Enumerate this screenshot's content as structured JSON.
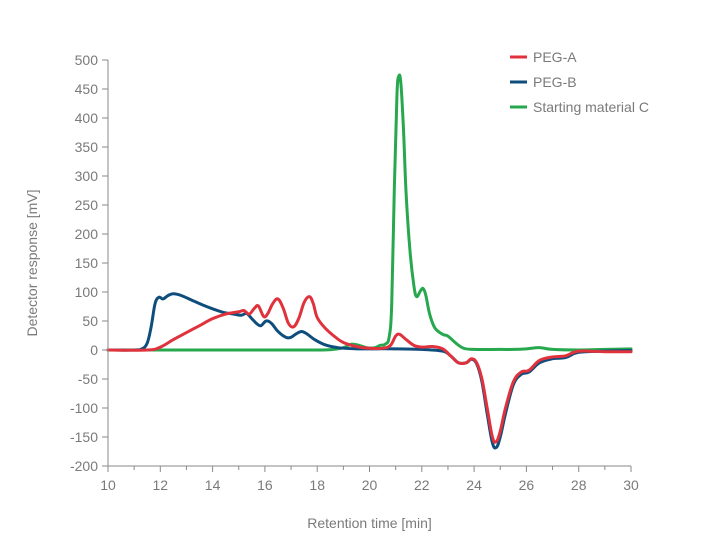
{
  "chart_data": {
    "type": "line",
    "title": "",
    "xlabel": "Retention time [min]",
    "ylabel": "Detector response [mV]",
    "xlim": [
      10,
      30
    ],
    "ylim": [
      -200,
      500
    ],
    "x_ticks": [
      "10",
      "12",
      "14",
      "16",
      "18",
      "20",
      "22",
      "24",
      "26",
      "28",
      "30"
    ],
    "y_ticks": [
      "500",
      "450",
      "400",
      "350",
      "300",
      "250",
      "200",
      "150",
      "100",
      "50",
      "0",
      "-50",
      "-100",
      "-150",
      "-200"
    ],
    "grid": false,
    "legend_position": "top-right",
    "series": [
      {
        "name": "PEG-A",
        "color": "#e0323c",
        "points": [
          [
            10,
            0
          ],
          [
            11.5,
            0
          ],
          [
            12,
            5
          ],
          [
            12.5,
            18
          ],
          [
            13,
            30
          ],
          [
            13.5,
            42
          ],
          [
            14,
            54
          ],
          [
            14.5,
            62
          ],
          [
            15,
            66
          ],
          [
            15.2,
            68
          ],
          [
            15.4,
            62
          ],
          [
            15.6,
            72
          ],
          [
            15.75,
            76
          ],
          [
            15.95,
            58
          ],
          [
            16.1,
            62
          ],
          [
            16.3,
            80
          ],
          [
            16.5,
            88
          ],
          [
            16.7,
            72
          ],
          [
            16.9,
            46
          ],
          [
            17.1,
            40
          ],
          [
            17.3,
            55
          ],
          [
            17.5,
            82
          ],
          [
            17.7,
            92
          ],
          [
            17.85,
            80
          ],
          [
            18,
            56
          ],
          [
            18.3,
            38
          ],
          [
            18.7,
            22
          ],
          [
            19,
            13
          ],
          [
            19.5,
            6
          ],
          [
            20,
            3
          ],
          [
            20.5,
            3
          ],
          [
            20.8,
            8
          ],
          [
            21,
            24
          ],
          [
            21.15,
            27
          ],
          [
            21.4,
            18
          ],
          [
            21.7,
            8
          ],
          [
            22,
            5
          ],
          [
            22.4,
            6
          ],
          [
            22.8,
            2
          ],
          [
            23.1,
            -10
          ],
          [
            23.4,
            -22
          ],
          [
            23.7,
            -22
          ],
          [
            23.9,
            -15
          ],
          [
            24.1,
            -22
          ],
          [
            24.3,
            -50
          ],
          [
            24.5,
            -100
          ],
          [
            24.7,
            -150
          ],
          [
            24.85,
            -158
          ],
          [
            25,
            -140
          ],
          [
            25.2,
            -100
          ],
          [
            25.5,
            -55
          ],
          [
            25.8,
            -38
          ],
          [
            26.1,
            -35
          ],
          [
            26.5,
            -18
          ],
          [
            27,
            -12
          ],
          [
            27.5,
            -10
          ],
          [
            28,
            -2
          ],
          [
            29,
            -3
          ],
          [
            30,
            -3
          ]
        ]
      },
      {
        "name": "PEG-B",
        "color": "#0e4d7c",
        "points": [
          [
            10,
            0
          ],
          [
            11,
            0
          ],
          [
            11.3,
            2
          ],
          [
            11.5,
            12
          ],
          [
            11.65,
            40
          ],
          [
            11.8,
            80
          ],
          [
            11.95,
            91
          ],
          [
            12.1,
            88
          ],
          [
            12.3,
            94
          ],
          [
            12.5,
            97
          ],
          [
            12.8,
            94
          ],
          [
            13.2,
            86
          ],
          [
            13.6,
            78
          ],
          [
            14,
            71
          ],
          [
            14.4,
            65
          ],
          [
            14.8,
            62
          ],
          [
            15.1,
            60
          ],
          [
            15.3,
            63
          ],
          [
            15.5,
            54
          ],
          [
            15.7,
            45
          ],
          [
            15.85,
            42
          ],
          [
            16.05,
            50
          ],
          [
            16.25,
            46
          ],
          [
            16.5,
            32
          ],
          [
            16.8,
            22
          ],
          [
            17,
            22
          ],
          [
            17.2,
            28
          ],
          [
            17.4,
            32
          ],
          [
            17.6,
            28
          ],
          [
            17.9,
            18
          ],
          [
            18.3,
            9
          ],
          [
            18.8,
            4
          ],
          [
            19.5,
            2
          ],
          [
            20,
            2
          ],
          [
            21,
            2
          ],
          [
            22,
            1
          ],
          [
            22.8,
            -2
          ],
          [
            23.1,
            -10
          ],
          [
            23.4,
            -22
          ],
          [
            23.7,
            -22
          ],
          [
            23.9,
            -16
          ],
          [
            24.1,
            -24
          ],
          [
            24.3,
            -55
          ],
          [
            24.5,
            -110
          ],
          [
            24.7,
            -160
          ],
          [
            24.85,
            -168
          ],
          [
            25,
            -150
          ],
          [
            25.2,
            -110
          ],
          [
            25.5,
            -60
          ],
          [
            25.8,
            -42
          ],
          [
            26.1,
            -38
          ],
          [
            26.5,
            -22
          ],
          [
            27,
            -15
          ],
          [
            27.5,
            -13
          ],
          [
            28,
            -4
          ],
          [
            29,
            -2
          ],
          [
            30,
            -1
          ]
        ]
      },
      {
        "name": "Starting material C",
        "color": "#27a84e",
        "points": [
          [
            10,
            0
          ],
          [
            12,
            0
          ],
          [
            14,
            0
          ],
          [
            16,
            0
          ],
          [
            18,
            0
          ],
          [
            18.6,
            1
          ],
          [
            19,
            4
          ],
          [
            19.3,
            10
          ],
          [
            19.6,
            8
          ],
          [
            19.9,
            4
          ],
          [
            20.2,
            4
          ],
          [
            20.4,
            8
          ],
          [
            20.6,
            10
          ],
          [
            20.75,
            22
          ],
          [
            20.85,
            80
          ],
          [
            20.95,
            280
          ],
          [
            21.05,
            440
          ],
          [
            21.12,
            472
          ],
          [
            21.2,
            460
          ],
          [
            21.3,
            380
          ],
          [
            21.4,
            270
          ],
          [
            21.55,
            170
          ],
          [
            21.7,
            110
          ],
          [
            21.8,
            92
          ],
          [
            21.95,
            102
          ],
          [
            22.05,
            106
          ],
          [
            22.15,
            95
          ],
          [
            22.3,
            62
          ],
          [
            22.5,
            38
          ],
          [
            22.8,
            27
          ],
          [
            23,
            24
          ],
          [
            23.3,
            12
          ],
          [
            23.6,
            3
          ],
          [
            24,
            1
          ],
          [
            25,
            1
          ],
          [
            25.5,
            1
          ],
          [
            26,
            2
          ],
          [
            26.5,
            4
          ],
          [
            27,
            1
          ],
          [
            28,
            0
          ],
          [
            29,
            1
          ],
          [
            30,
            2
          ]
        ]
      }
    ]
  }
}
